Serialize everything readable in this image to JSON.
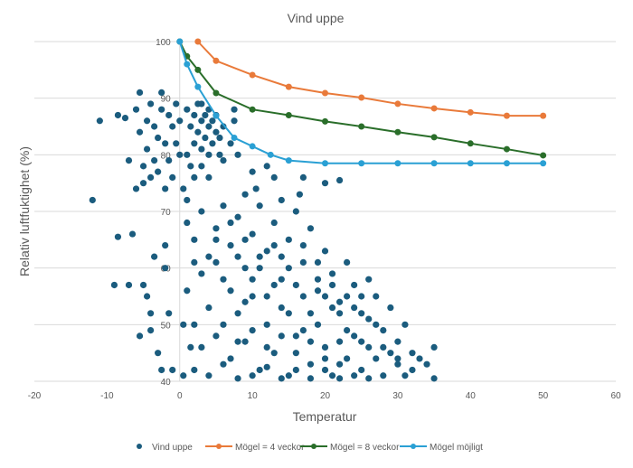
{
  "chart_data": {
    "type": "scatter",
    "title": "Vind uppe",
    "xlabel": "Temperatur",
    "ylabel": "Relativ luftfuktighet (%)",
    "xlim": [
      -20,
      60
    ],
    "ylim": [
      40,
      100
    ],
    "xticks": [
      -20,
      -10,
      0,
      10,
      20,
      30,
      40,
      50,
      60
    ],
    "yticks": [
      40,
      50,
      60,
      70,
      80,
      90,
      100
    ],
    "grid": "horizontal",
    "legend_position": "bottom",
    "series": [
      {
        "name": "Vind uppe",
        "type": "scatter",
        "color": "#1b5c7e",
        "points": [
          [
            -12,
            72
          ],
          [
            -11,
            86
          ],
          [
            -8.5,
            65.5
          ],
          [
            -8.5,
            87
          ],
          [
            -7.5,
            86.5
          ],
          [
            -7,
            79
          ],
          [
            -6.5,
            66
          ],
          [
            -6,
            88
          ],
          [
            -6,
            74
          ],
          [
            -5.5,
            91
          ],
          [
            -5.5,
            84
          ],
          [
            -5,
            78
          ],
          [
            -5,
            75
          ],
          [
            -4.5,
            86
          ],
          [
            -4.5,
            81
          ],
          [
            -4,
            89
          ],
          [
            -4,
            76
          ],
          [
            -3.5,
            85
          ],
          [
            -3.5,
            79
          ],
          [
            -3,
            83
          ],
          [
            -3,
            77
          ],
          [
            -2.5,
            88
          ],
          [
            -2.5,
            91
          ],
          [
            -2,
            82
          ],
          [
            -2,
            74
          ],
          [
            -1.5,
            87
          ],
          [
            -1.5,
            79
          ],
          [
            -1,
            85
          ],
          [
            -1,
            76
          ],
          [
            -0.5,
            82
          ],
          [
            -0.5,
            89
          ],
          [
            0,
            80
          ],
          [
            0,
            86
          ],
          [
            -7,
            57
          ],
          [
            -9,
            57
          ],
          [
            -5,
            57
          ],
          [
            -4.5,
            55
          ],
          [
            -4,
            52
          ],
          [
            -3,
            45
          ],
          [
            -2.5,
            42
          ],
          [
            -1,
            42
          ],
          [
            -4,
            49
          ],
          [
            -5.5,
            48
          ],
          [
            -2,
            60
          ],
          [
            -1.5,
            52
          ],
          [
            -3.5,
            62
          ],
          [
            -2,
            64
          ],
          [
            1,
            88
          ],
          [
            1.5,
            85
          ],
          [
            2,
            87
          ],
          [
            2,
            82
          ],
          [
            2.5,
            89
          ],
          [
            2.5,
            84
          ],
          [
            3,
            86
          ],
          [
            3,
            81
          ],
          [
            3,
            89
          ],
          [
            3.5,
            87
          ],
          [
            3.5,
            83
          ],
          [
            4,
            85
          ],
          [
            4,
            88
          ],
          [
            4,
            80
          ],
          [
            4.5,
            86
          ],
          [
            4.5,
            82
          ],
          [
            5,
            84
          ],
          [
            5,
            87
          ],
          [
            5.5,
            83
          ],
          [
            5.5,
            80
          ],
          [
            6,
            85
          ],
          [
            1,
            80
          ],
          [
            1.5,
            78
          ],
          [
            2,
            76
          ],
          [
            0.5,
            74
          ],
          [
            1,
            72
          ],
          [
            3,
            78
          ],
          [
            4,
            76
          ],
          [
            6,
            79
          ],
          [
            7,
            82
          ],
          [
            8,
            80
          ],
          [
            7.5,
            86
          ],
          [
            7.5,
            88
          ],
          [
            10,
            77
          ],
          [
            12,
            78
          ],
          [
            13,
            76
          ],
          [
            17,
            76
          ],
          [
            20,
            75
          ],
          [
            22,
            75.5
          ],
          [
            16.5,
            73
          ],
          [
            14,
            72
          ],
          [
            9,
            73
          ],
          [
            10.5,
            74
          ],
          [
            1,
            68
          ],
          [
            2,
            65
          ],
          [
            3,
            70
          ],
          [
            4,
            62
          ],
          [
            5,
            67
          ],
          [
            6,
            71
          ],
          [
            7,
            64
          ],
          [
            8,
            69
          ],
          [
            9,
            60
          ],
          [
            10,
            66
          ],
          [
            11,
            71
          ],
          [
            12,
            63
          ],
          [
            13,
            68
          ],
          [
            14,
            58
          ],
          [
            15,
            65
          ],
          [
            16,
            70
          ],
          [
            17,
            61
          ],
          [
            18,
            67
          ],
          [
            19,
            56
          ],
          [
            20,
            63
          ],
          [
            21,
            59
          ],
          [
            22,
            54
          ],
          [
            23,
            61
          ],
          [
            24,
            57
          ],
          [
            25,
            52
          ],
          [
            26,
            58
          ],
          [
            27,
            55
          ],
          [
            28,
            49
          ],
          [
            29,
            53
          ],
          [
            30,
            47
          ],
          [
            31,
            50
          ],
          [
            32,
            45
          ],
          [
            33,
            44
          ],
          [
            35,
            46
          ],
          [
            1,
            56
          ],
          [
            2,
            50
          ],
          [
            3,
            46
          ],
          [
            4,
            53
          ],
          [
            5,
            48
          ],
          [
            6,
            58
          ],
          [
            7,
            44
          ],
          [
            8,
            52
          ],
          [
            9,
            47
          ],
          [
            10,
            55
          ],
          [
            11,
            42
          ],
          [
            12,
            50
          ],
          [
            13,
            45
          ],
          [
            14,
            53
          ],
          [
            15,
            41
          ],
          [
            16,
            48
          ],
          [
            17,
            55
          ],
          [
            18,
            43
          ],
          [
            19,
            50
          ],
          [
            20,
            46
          ],
          [
            21,
            41
          ],
          [
            22,
            52
          ],
          [
            23,
            44
          ],
          [
            24,
            48
          ],
          [
            25,
            42
          ],
          [
            26,
            46
          ],
          [
            27,
            50
          ],
          [
            28,
            41
          ],
          [
            29,
            45
          ],
          [
            30,
            43
          ],
          [
            31,
            41
          ],
          [
            2,
            42
          ],
          [
            4,
            41
          ],
          [
            6,
            43
          ],
          [
            8,
            40.5
          ],
          [
            10,
            41
          ],
          [
            12,
            42.5
          ],
          [
            14,
            40.5
          ],
          [
            16,
            42
          ],
          [
            18,
            40.5
          ],
          [
            20,
            42
          ],
          [
            22,
            40.5
          ],
          [
            24,
            41
          ],
          [
            26,
            40.5
          ],
          [
            3,
            59
          ],
          [
            5,
            61
          ],
          [
            7,
            56
          ],
          [
            9,
            54
          ],
          [
            11,
            60
          ],
          [
            13,
            57
          ],
          [
            15,
            52
          ],
          [
            17,
            49
          ],
          [
            19,
            58
          ],
          [
            21,
            53
          ],
          [
            23,
            49
          ],
          [
            25,
            47
          ],
          [
            27,
            44
          ],
          [
            8,
            62
          ],
          [
            10,
            58
          ],
          [
            12,
            55
          ],
          [
            14,
            62
          ],
          [
            16,
            57
          ],
          [
            18,
            52
          ],
          [
            20,
            55
          ],
          [
            22,
            47
          ],
          [
            24,
            53
          ],
          [
            26,
            51
          ],
          [
            28,
            46
          ],
          [
            30,
            44
          ],
          [
            32,
            42
          ],
          [
            34,
            43
          ],
          [
            6,
            50
          ],
          [
            8,
            47
          ],
          [
            10,
            49
          ],
          [
            12,
            46
          ],
          [
            14,
            48
          ],
          [
            16,
            45
          ],
          [
            18,
            47
          ],
          [
            20,
            44
          ],
          [
            22,
            43
          ],
          [
            5,
            65
          ],
          [
            7,
            68
          ],
          [
            9,
            65
          ],
          [
            11,
            62
          ],
          [
            13,
            64
          ],
          [
            15,
            60
          ],
          [
            17,
            64
          ],
          [
            19,
            61
          ],
          [
            21,
            57
          ],
          [
            23,
            55
          ],
          [
            25,
            55
          ],
          [
            2,
            61
          ],
          [
            1.5,
            46
          ],
          [
            0.5,
            50
          ],
          [
            0.5,
            41
          ],
          [
            35,
            40.5
          ]
        ]
      },
      {
        "name": "Mögel = 4 veckor",
        "type": "line",
        "color": "#e97a3a",
        "points": [
          [
            2.5,
            100
          ],
          [
            5,
            96.6
          ],
          [
            10,
            94.1
          ],
          [
            15,
            92
          ],
          [
            20,
            90.9
          ],
          [
            25,
            90.1
          ],
          [
            30,
            89
          ],
          [
            35,
            88.2
          ],
          [
            40,
            87.5
          ],
          [
            45,
            86.9
          ],
          [
            50,
            86.9
          ]
        ]
      },
      {
        "name": "Mögel = 8 veckor",
        "type": "line",
        "color": "#2a6e2a",
        "points": [
          [
            0,
            100
          ],
          [
            1,
            97.4
          ],
          [
            2.5,
            95
          ],
          [
            5,
            90.9
          ],
          [
            10,
            88
          ],
          [
            15,
            87
          ],
          [
            20,
            85.9
          ],
          [
            25,
            85
          ],
          [
            30,
            84
          ],
          [
            35,
            83.1
          ],
          [
            40,
            82
          ],
          [
            45,
            81
          ],
          [
            50,
            79.9
          ]
        ]
      },
      {
        "name": "Mögel möjligt",
        "type": "line",
        "color": "#2aa0d4",
        "points": [
          [
            0,
            100
          ],
          [
            1,
            96
          ],
          [
            2.5,
            92
          ],
          [
            5,
            86.9
          ],
          [
            7.5,
            83
          ],
          [
            10,
            81.5
          ],
          [
            12.5,
            80
          ],
          [
            15,
            79
          ],
          [
            20,
            78.5
          ],
          [
            25,
            78.5
          ],
          [
            30,
            78.5
          ],
          [
            35,
            78.5
          ],
          [
            40,
            78.5
          ],
          [
            45,
            78.5
          ],
          [
            50,
            78.5
          ]
        ]
      }
    ]
  }
}
